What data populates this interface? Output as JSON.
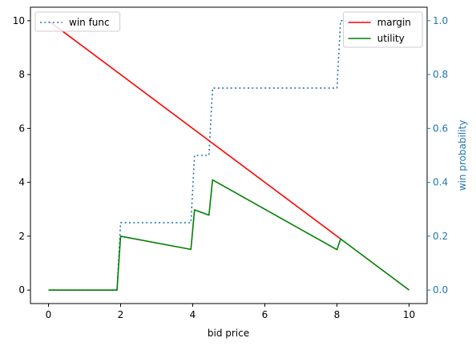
{
  "chart_data": {
    "type": "line",
    "xlabel": "bid price",
    "ylabel": "",
    "y2label": "win probability",
    "xlim": [
      -0.5,
      10.5
    ],
    "ylim": [
      -0.5,
      10.5
    ],
    "y2lim": [
      -0.05,
      1.05
    ],
    "xticks": [
      0,
      2,
      4,
      6,
      8,
      10
    ],
    "yticks": [
      0,
      2,
      4,
      6,
      8,
      10
    ],
    "y2ticks": [
      0.0,
      0.2,
      0.4,
      0.6,
      0.8,
      1.0
    ],
    "y2tick_labels": [
      "0.0",
      "0.2",
      "0.4",
      "0.6",
      "0.8",
      "1.0"
    ],
    "grid": false,
    "legend_left": {
      "placement": "upper-left",
      "entries": [
        "win func"
      ]
    },
    "legend_right": {
      "placement": "upper-right",
      "entries": [
        "margin",
        "utility"
      ]
    },
    "colors": {
      "win_func": "#1f77b4",
      "margin": "#ff0000",
      "utility": "#008000",
      "right_axis": "#1f77b4"
    },
    "series": [
      {
        "name": "win func",
        "axis": "right",
        "style": "dotted",
        "x": [
          0,
          1.9,
          2.0,
          3.95,
          4.05,
          4.45,
          4.55,
          8.0,
          8.1,
          10
        ],
        "y": [
          0,
          0,
          0.25,
          0.25,
          0.5,
          0.5,
          0.75,
          0.75,
          1.0,
          1.0
        ]
      },
      {
        "name": "margin",
        "axis": "left",
        "style": "solid",
        "x": [
          0,
          8.1
        ],
        "y": [
          10,
          1.9
        ]
      },
      {
        "name": "utility",
        "axis": "left",
        "style": "solid",
        "x": [
          0,
          1.9,
          2.0,
          3.95,
          4.05,
          4.45,
          4.55,
          8.0,
          8.1,
          10
        ],
        "y": [
          0,
          0,
          2.0,
          1.51,
          2.98,
          2.78,
          4.09,
          1.5,
          1.9,
          0
        ]
      }
    ]
  }
}
